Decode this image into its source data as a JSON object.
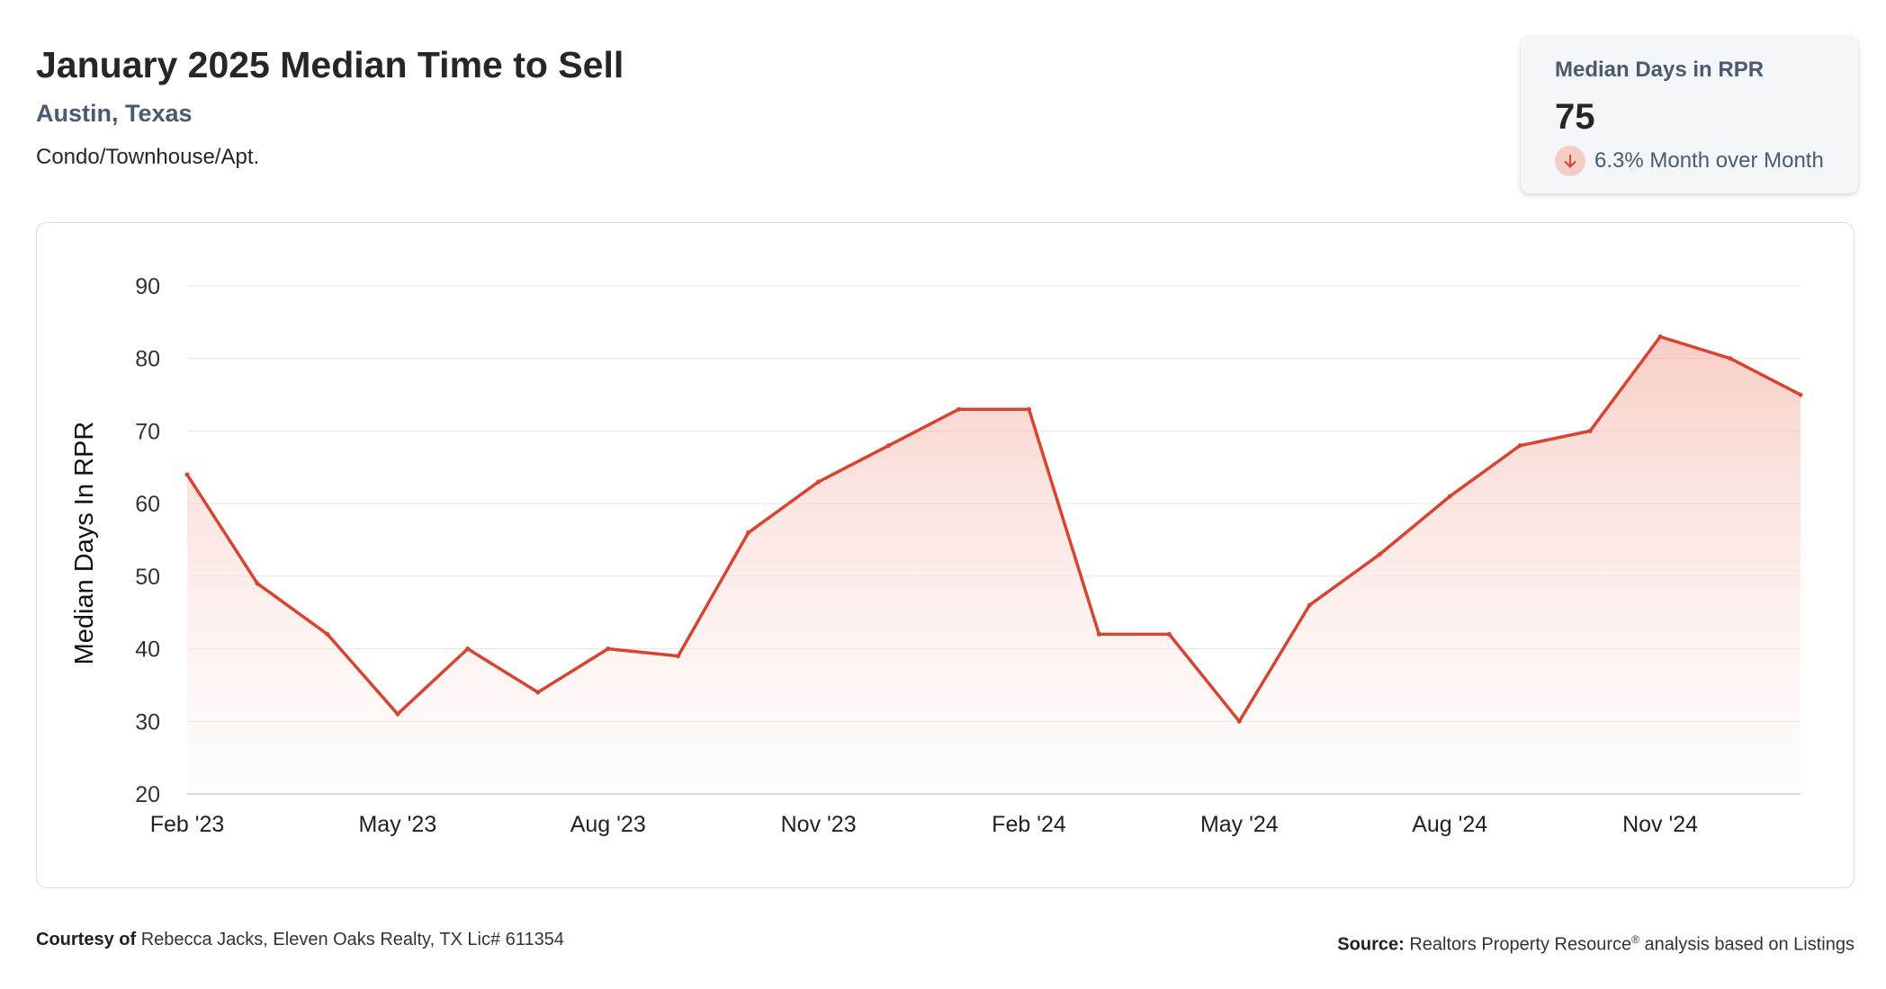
{
  "header": {
    "title": "January 2025 Median Time to Sell",
    "location": "Austin, Texas",
    "property_type": "Condo/Townhouse/Apt."
  },
  "stat_card": {
    "label": "Median Days in RPR",
    "value": "75",
    "change": "6.3% Month over Month",
    "direction": "down",
    "icon": "arrow-down-icon"
  },
  "chart_data": {
    "type": "area",
    "title": "January 2025 Median Time to Sell",
    "xlabel": "",
    "ylabel": "Median Days In RPR",
    "ylim": [
      20,
      90
    ],
    "yticks": [
      20,
      30,
      40,
      50,
      60,
      70,
      80,
      90
    ],
    "x": [
      "Feb '23",
      "Mar '23",
      "Apr '23",
      "May '23",
      "Jun '23",
      "Jul '23",
      "Aug '23",
      "Sep '23",
      "Oct '23",
      "Nov '23",
      "Dec '23",
      "Jan '24",
      "Feb '24",
      "Mar '24",
      "Apr '24",
      "May '24",
      "Jun '24",
      "Jul '24",
      "Aug '24",
      "Sep '24",
      "Oct '24",
      "Nov '24",
      "Dec '24",
      "Jan '25"
    ],
    "xtick_labels": [
      "Feb '23",
      "May '23",
      "Aug '23",
      "Nov '23",
      "Feb '24",
      "May '24",
      "Aug '24",
      "Nov '24"
    ],
    "series": [
      {
        "values": [
          64,
          49,
          42,
          31,
          40,
          34,
          40,
          39,
          56,
          63,
          68,
          73,
          73,
          42,
          42,
          30,
          46,
          53,
          61,
          68,
          70,
          83,
          80,
          75
        ]
      }
    ],
    "grid": true,
    "legend": "none",
    "line_color": "#d9432f",
    "fill_color": "#f8d3cc"
  },
  "footer": {
    "courtesy_label": "Courtesy of",
    "courtesy_text": "Rebecca Jacks, Eleven Oaks Realty, TX Lic# 611354",
    "source_label": "Source:",
    "source_text_1": "Realtors Property Resource",
    "source_reg": "®",
    "source_text_2": "analysis based on Listings"
  }
}
